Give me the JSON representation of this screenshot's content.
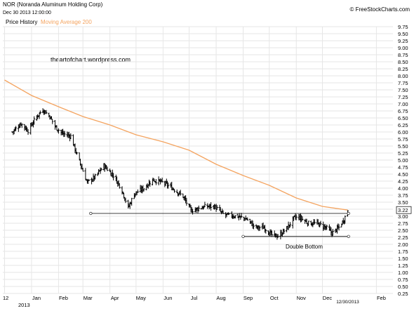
{
  "header": {
    "title": "NOR (Noranda Aluminum Holding Corp)",
    "datetime": "Dec 30 2013 12:00:00",
    "credit": "© FreeStockCharts.com",
    "legend_price": "Price History",
    "legend_ma": "Moving Average 200"
  },
  "watermark": "theartofchart.wordpress.com",
  "colors": {
    "price": "#000000",
    "ma": "#f4a460",
    "grid": "#e6e6e6",
    "annotation": "#000000"
  },
  "chart_data": {
    "type": "ohlc",
    "title": "NOR (Noranda Aluminum Holding Corp)",
    "xlabel": "",
    "ylabel": "",
    "ylim": [
      0.25,
      9.75
    ],
    "grid": true,
    "legend_placement": "top-left",
    "y_ticks": [
      "0.25",
      "0.50",
      "0.75",
      "1.00",
      "1.25",
      "1.50",
      "1.75",
      "2.00",
      "2.25",
      "2.50",
      "2.75",
      "3.00",
      "3.25",
      "3.50",
      "3.75",
      "4.00",
      "4.25",
      "4.50",
      "4.75",
      "5.00",
      "5.25",
      "5.50",
      "5.75",
      "6.00",
      "6.25",
      "6.50",
      "6.75",
      "7.00",
      "7.25",
      "7.50",
      "7.75",
      "8.00",
      "8.25",
      "8.50",
      "8.75",
      "9.00",
      "9.25",
      "9.50",
      "9.75"
    ],
    "x_ticks": [
      {
        "label": "12",
        "date": "2012-12-01"
      },
      {
        "label": "Jan",
        "date": "2013-01-01"
      },
      {
        "label": "Feb",
        "date": "2013-02-01"
      },
      {
        "label": "Mar",
        "date": "2013-03-01"
      },
      {
        "label": "Apr",
        "date": "2013-04-01"
      },
      {
        "label": "May",
        "date": "2013-05-01"
      },
      {
        "label": "Jun",
        "date": "2013-06-01"
      },
      {
        "label": "Jul",
        "date": "2013-07-01"
      },
      {
        "label": "Aug",
        "date": "2013-08-01"
      },
      {
        "label": "Sep",
        "date": "2013-09-01"
      },
      {
        "label": "Oct",
        "date": "2013-10-01"
      },
      {
        "label": "Nov",
        "date": "2013-11-01"
      },
      {
        "label": "Dec",
        "date": "2013-12-01"
      },
      {
        "label": "Feb",
        "date": "2014-02-01"
      }
    ],
    "year_label": "2013",
    "cursor_label": "12/30/2013",
    "last_price": "3.22",
    "series": [
      {
        "name": "Price History",
        "kind": "ohlc",
        "key_points": [
          {
            "date": "2012-12-10",
            "close": 6.0
          },
          {
            "date": "2012-12-20",
            "close": 6.3
          },
          {
            "date": "2012-12-28",
            "close": 6.05
          },
          {
            "date": "2013-01-07",
            "close": 6.55
          },
          {
            "date": "2013-01-14",
            "close": 6.8
          },
          {
            "date": "2013-01-22",
            "close": 6.55
          },
          {
            "date": "2013-01-28",
            "close": 6.2
          },
          {
            "date": "2013-02-05",
            "close": 5.95
          },
          {
            "date": "2013-02-15",
            "close": 5.85
          },
          {
            "date": "2013-02-22",
            "close": 5.2
          },
          {
            "date": "2013-02-28",
            "close": 4.7
          },
          {
            "date": "2013-03-06",
            "close": 4.2
          },
          {
            "date": "2013-03-15",
            "close": 4.4
          },
          {
            "date": "2013-03-25",
            "close": 4.8
          },
          {
            "date": "2013-04-05",
            "close": 4.45
          },
          {
            "date": "2013-04-14",
            "close": 4.0
          },
          {
            "date": "2013-04-22",
            "close": 3.3
          },
          {
            "date": "2013-04-29",
            "close": 3.8
          },
          {
            "date": "2013-05-10",
            "close": 4.0
          },
          {
            "date": "2013-05-20",
            "close": 4.3
          },
          {
            "date": "2013-06-01",
            "close": 4.2
          },
          {
            "date": "2013-06-12",
            "close": 4.0
          },
          {
            "date": "2013-06-24",
            "close": 3.7
          },
          {
            "date": "2013-07-03",
            "close": 3.2
          },
          {
            "date": "2013-07-20",
            "close": 3.35
          },
          {
            "date": "2013-07-30",
            "close": 3.35
          },
          {
            "date": "2013-08-10",
            "close": 3.05
          },
          {
            "date": "2013-08-25",
            "close": 3.0
          },
          {
            "date": "2013-09-05",
            "close": 2.9
          },
          {
            "date": "2013-09-15",
            "close": 2.6
          },
          {
            "date": "2013-09-25",
            "close": 2.6
          },
          {
            "date": "2013-10-05",
            "close": 2.3
          },
          {
            "date": "2013-10-12",
            "close": 2.3
          },
          {
            "date": "2013-10-22",
            "close": 2.6
          },
          {
            "date": "2013-10-30",
            "close": 2.95
          },
          {
            "date": "2013-11-05",
            "close": 2.95
          },
          {
            "date": "2013-11-15",
            "close": 2.75
          },
          {
            "date": "2013-11-25",
            "close": 2.75
          },
          {
            "date": "2013-12-05",
            "close": 2.6
          },
          {
            "date": "2013-12-12",
            "close": 2.4
          },
          {
            "date": "2013-12-20",
            "close": 2.6
          },
          {
            "date": "2013-12-26",
            "close": 2.9
          },
          {
            "date": "2013-12-30",
            "close": 3.22
          }
        ]
      },
      {
        "name": "Moving Average 200",
        "kind": "line",
        "points": [
          {
            "date": "2012-12-01",
            "value": 7.85
          },
          {
            "date": "2013-01-01",
            "value": 7.3
          },
          {
            "date": "2013-02-01",
            "value": 6.9
          },
          {
            "date": "2013-03-01",
            "value": 6.55
          },
          {
            "date": "2013-04-01",
            "value": 6.25
          },
          {
            "date": "2013-05-01",
            "value": 5.9
          },
          {
            "date": "2013-06-01",
            "value": 5.65
          },
          {
            "date": "2013-07-01",
            "value": 5.35
          },
          {
            "date": "2013-08-01",
            "value": 4.85
          },
          {
            "date": "2013-09-01",
            "value": 4.45
          },
          {
            "date": "2013-10-01",
            "value": 4.1
          },
          {
            "date": "2013-11-01",
            "value": 3.65
          },
          {
            "date": "2013-12-01",
            "value": 3.35
          },
          {
            "date": "2013-12-30",
            "value": 3.22
          }
        ]
      }
    ],
    "annotations": [
      {
        "kind": "horizontal_line",
        "value": 3.1,
        "from": "2013-03-10",
        "to": "2013-12-31"
      },
      {
        "kind": "horizontal_line",
        "value": 2.28,
        "from": "2013-09-01",
        "to": "2013-12-31"
      },
      {
        "kind": "text",
        "text": "Double Bottom",
        "date": "2013-11-10",
        "value": 2.0
      }
    ]
  }
}
